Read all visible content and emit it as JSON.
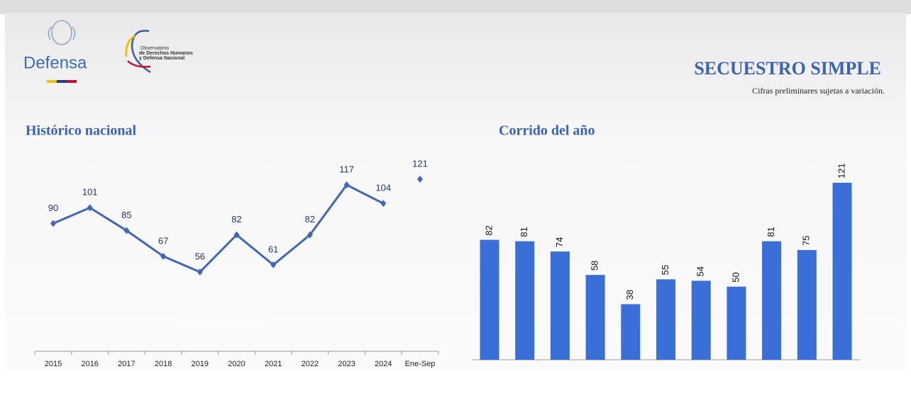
{
  "header": {
    "title": "SECUESTRO SIMPLE",
    "note": "Cifras preliminares sujetas a variación."
  },
  "logo": {
    "defensa": "Defensa",
    "observatorio": [
      "Observatorio",
      "de Derechos Humanos",
      "y Defensa Nacional"
    ]
  },
  "chart_data": [
    {
      "type": "line",
      "title": "Histórico nacional",
      "categories": [
        "2015",
        "2016",
        "2017",
        "2018",
        "2019",
        "2020",
        "2021",
        "2022",
        "2023",
        "2024",
        "Ene-Sep"
      ],
      "series": [
        {
          "color": "#3f66b8",
          "values": [
            90,
            101,
            85,
            67,
            56,
            82,
            61,
            82,
            117,
            104,
            null
          ]
        },
        {
          "color": "#3f66b8",
          "line": false,
          "values": [
            null,
            null,
            null,
            null,
            null,
            null,
            null,
            null,
            null,
            null,
            121
          ]
        }
      ]
    },
    {
      "type": "bar",
      "title": "Corrido del año",
      "color": "#3a6fd8",
      "categories": [
        null,
        null,
        null,
        null,
        null,
        null,
        null,
        null,
        null,
        null,
        null
      ],
      "values": [
        82,
        81,
        74,
        58,
        38,
        55,
        54,
        50,
        81,
        75,
        121
      ]
    }
  ]
}
